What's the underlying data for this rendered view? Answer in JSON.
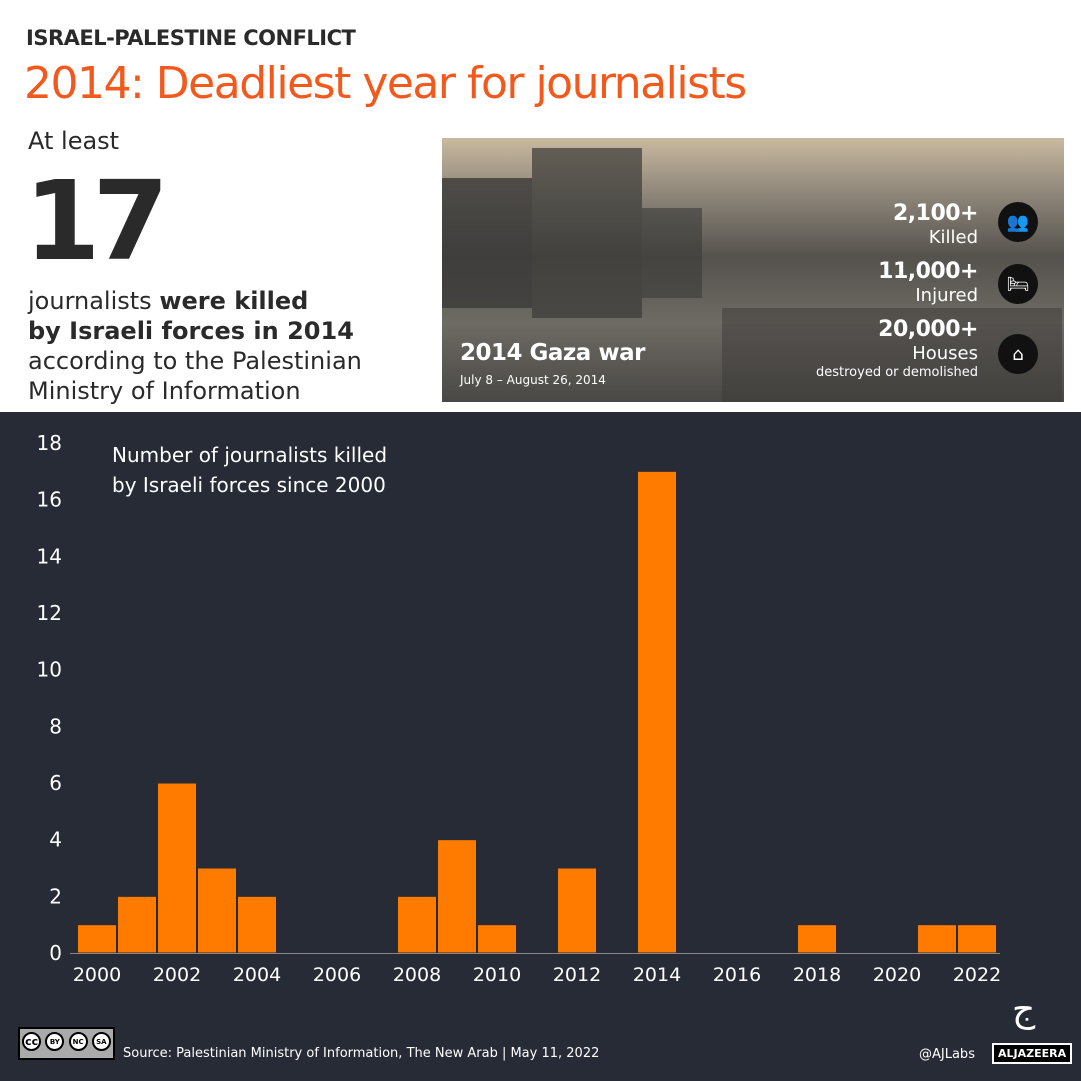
{
  "header": {
    "kicker": "ISRAEL-PALESTINE CONFLICT",
    "title": "2014: Deadliest year for journalists"
  },
  "lead": {
    "pre": "At least",
    "number": "17",
    "line1_normal": "journalists ",
    "line1_bold": "were killed",
    "line2_bold": "by Israeli forces in 2014",
    "line3": "according to the Palestinian",
    "line4": "Ministry of Information"
  },
  "photo": {
    "war_title": "2014 Gaza war",
    "war_dates": "July 8 –  August 26, 2014",
    "stats": [
      {
        "number": "2,100+",
        "label": "Killed",
        "icon": "people-icon"
      },
      {
        "number": "11,000+",
        "label": "Injured",
        "icon": "hospital-bed-icon"
      },
      {
        "number": "20,000+",
        "label": "Houses",
        "sublabel": "destroyed or demolished",
        "icon": "damaged-house-icon"
      }
    ]
  },
  "chart_data": {
    "type": "bar",
    "title": "Number of journalists killed by Israeli forces since 2000",
    "title_lines": [
      "Number of journalists killed",
      "by Israeli forces since 2000"
    ],
    "categories": [
      2000,
      2001,
      2002,
      2003,
      2004,
      2005,
      2006,
      2007,
      2008,
      2009,
      2010,
      2011,
      2012,
      2013,
      2014,
      2015,
      2016,
      2017,
      2018,
      2019,
      2020,
      2021,
      2022
    ],
    "values": [
      1,
      2,
      6,
      3,
      2,
      0,
      0,
      0,
      2,
      4,
      1,
      0,
      3,
      0,
      17,
      0,
      0,
      0,
      1,
      0,
      0,
      1,
      1
    ],
    "xticks": [
      "2000",
      "2002",
      "2004",
      "2006",
      "2008",
      "2010",
      "2012",
      "2014",
      "2016",
      "2018",
      "2020",
      "2022"
    ],
    "yticks": [
      0,
      2,
      4,
      6,
      8,
      10,
      12,
      14,
      16,
      18
    ],
    "ylim": [
      0,
      18
    ],
    "grid": false,
    "colors": {
      "bar": "#ff7b00",
      "background": "#262b36",
      "text": "#ffffff"
    }
  },
  "footer": {
    "license": [
      "BY",
      "NC",
      "SA"
    ],
    "source": "Source: Palestinian Ministry of Information, The New Arab | May 11, 2022",
    "handle": "@AJLabs",
    "brand": "ALJAZEERA"
  }
}
